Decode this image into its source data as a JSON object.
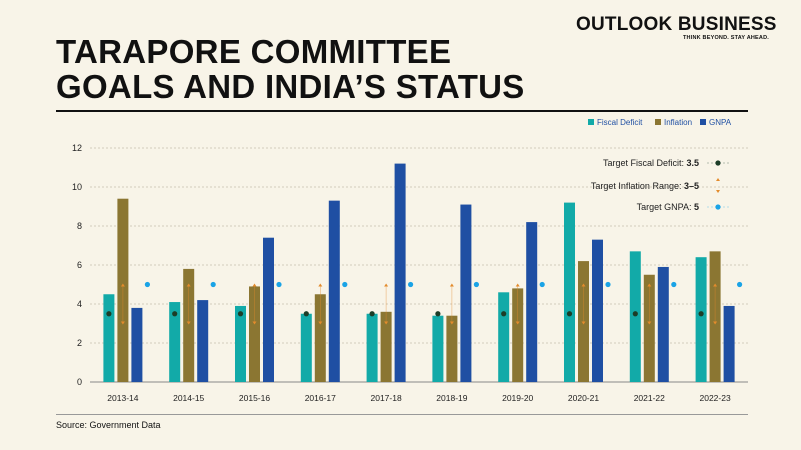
{
  "brand": {
    "name": "OUTLOOK BUSINESS",
    "tagline": "THINK BEYOND. STAY AHEAD."
  },
  "title": {
    "line1": "TARAPORE COMMITTEE",
    "line2": "GOALS AND INDIA’S STATUS"
  },
  "source": "Source: Government Data",
  "colors": {
    "fiscal_deficit": "#12aaa8",
    "inflation": "#8b7632",
    "gnpa": "#1f4fa3",
    "target_fiscal": "#1c3d28",
    "target_inflation": "#e38b2c",
    "target_gnpa": "#1aa3e6",
    "background": "#f8f4e8"
  },
  "chart_data": {
    "type": "bar",
    "title": "Tarapore Committee Goals and India's Status",
    "categories": [
      "2013-14",
      "2014-15",
      "2015-16",
      "2016-17",
      "2017-18",
      "2018-19",
      "2019-20",
      "2020-21",
      "2021-22",
      "2022-23"
    ],
    "series": [
      {
        "name": "Fiscal Deficit",
        "values": [
          4.5,
          4.1,
          3.9,
          3.5,
          3.5,
          3.4,
          4.6,
          9.2,
          6.7,
          6.4
        ]
      },
      {
        "name": "Inflation",
        "values": [
          9.4,
          5.8,
          4.9,
          4.5,
          3.6,
          3.4,
          4.8,
          6.2,
          5.5,
          6.7
        ]
      },
      {
        "name": "GNPA",
        "values": [
          3.8,
          4.2,
          7.4,
          9.3,
          11.2,
          9.1,
          8.2,
          7.3,
          5.9,
          3.9
        ]
      }
    ],
    "targets": {
      "fiscal_deficit": {
        "label": "Target Fiscal Deficit:",
        "value_text": "3.5",
        "value": 3.5
      },
      "inflation": {
        "label": "Target Inflation Range:",
        "value_text": "3–5",
        "low": 3,
        "high": 5
      },
      "gnpa": {
        "label": "Target GNPA:",
        "value_text": "5",
        "value": 5
      }
    },
    "ylim": [
      0,
      12
    ],
    "yticks": [
      0,
      2,
      4,
      6,
      8,
      10,
      12
    ],
    "xlabel": "",
    "ylabel": "",
    "legend": [
      "Fiscal Deficit",
      "Inflation",
      "GNPA"
    ],
    "legend_position": "top-right"
  }
}
